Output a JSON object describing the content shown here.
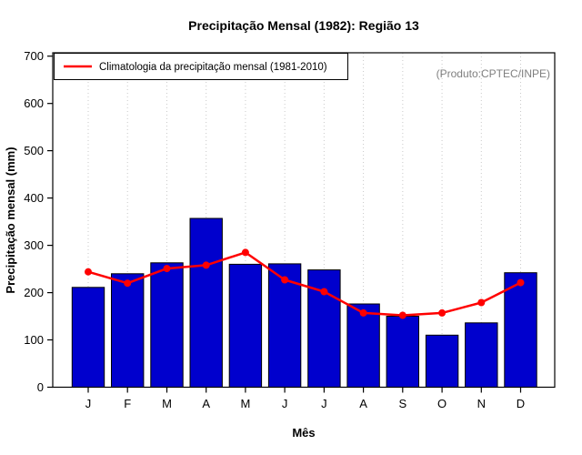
{
  "chart_data": {
    "type": "bar",
    "title": "Precipitação Mensal (1982): Região 13",
    "xlabel": "Mês",
    "ylabel": "Precipitação mensal (mm)",
    "ylim": [
      0,
      700
    ],
    "yticks": [
      0,
      100,
      200,
      300,
      400,
      500,
      600,
      700
    ],
    "categories": [
      "J",
      "F",
      "M",
      "A",
      "M",
      "J",
      "J",
      "A",
      "S",
      "O",
      "N",
      "D"
    ],
    "series": [
      {
        "name": "Precipitação mensal 1982",
        "type": "bar",
        "color": "#0000CD",
        "values": [
          211,
          240,
          263,
          357,
          260,
          261,
          248,
          176,
          150,
          110,
          136,
          242
        ]
      },
      {
        "name": "Climatologia da precipitação mensal (1981-2010)",
        "type": "line",
        "color": "#FF0000",
        "values": [
          244,
          220,
          251,
          258,
          285,
          227,
          202,
          157,
          152,
          157,
          179,
          221
        ]
      }
    ],
    "legend": {
      "position": "top-left",
      "label": "Climatologia da precipitação mensal (1981-2010)"
    },
    "annotation": "(Produto:CPTEC/INPE)",
    "grid": "vertical-dotted",
    "grid_color": "#c9c9c9",
    "bar_border_color": "#000000",
    "axis_color": "#000000"
  }
}
